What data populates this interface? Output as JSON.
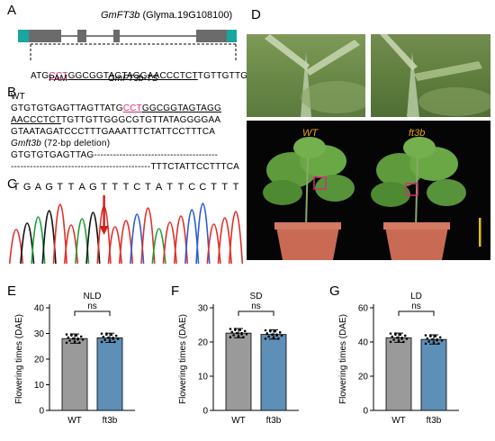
{
  "panels": {
    "A": "A",
    "B": "B",
    "C": "C",
    "D": "D",
    "E": "E",
    "F": "F",
    "G": "G"
  },
  "gene": {
    "name": "GmFT3b",
    "id": "(Glyma.19G108100)"
  },
  "grna": {
    "prefix": "ATG",
    "pam_seq": "CCT",
    "target_seq": "GGCGGTAGTAGGAACCCTCT",
    "suffix": "TGTTGTTG",
    "pam_label": "PAM",
    "ts_label": "GmFT3b-TS"
  },
  "seqs": {
    "wt_label": "WT",
    "line1_a": "GTGTGTGAGTTAGTTATG",
    "line1_pam": "CCT",
    "line1_b": "GGCGGTAGTAGG",
    "line2_a": "AACCCTCT",
    "line2_b": "TGTTGTTGGGCGTGTTATAGGGGAA",
    "line3": "GTAATAGATCCCTTTGAAATTTCTATTCCTTTCA",
    "mut_label": "Gmft3b",
    "mut_note": " (72-bp deletion)",
    "mut_line1": "GTGTGTGAGTTAG---------------------------------------",
    "mut_line2": "--------------------------------------------TTTCTATTCCTTTCA"
  },
  "chromatogram": {
    "bases": [
      "T",
      "G",
      "A",
      "G",
      "T",
      "T",
      "A",
      "G",
      "T",
      "T",
      "T",
      "C",
      "T",
      "A",
      "T",
      "T",
      "C",
      "C",
      "T",
      "T",
      "T"
    ]
  },
  "photo_labels": {
    "wt": "WT",
    "mut": "ft3b"
  },
  "colors": {
    "exon": "#6b6b6b",
    "utr": "#1aa6a0",
    "pink": "#d42c7a",
    "arrow": "#d0201c",
    "bar_wt": "#9a9a9a",
    "bar_ft3b": "#5e8fb6",
    "photo_label": "#e8a21a",
    "scale_bar": "#e8c000"
  },
  "chart_data": [
    {
      "type": "bar",
      "title": "NLD",
      "categories": [
        "WT",
        "ft3b"
      ],
      "values": [
        28,
        28.3
      ],
      "ylabel": "Flowering times (DAE)",
      "ylim": [
        0,
        40
      ],
      "yticks": [
        0,
        10,
        20,
        30,
        40
      ],
      "significance": "ns"
    },
    {
      "type": "bar",
      "title": "SD",
      "categories": [
        "WT",
        "ft3b"
      ],
      "values": [
        22.6,
        22.2
      ],
      "ylabel": "Flowering times (DAE)",
      "ylim": [
        0,
        30
      ],
      "yticks": [
        0,
        10,
        20,
        30
      ],
      "significance": "ns"
    },
    {
      "type": "bar",
      "title": "LD",
      "categories": [
        "WT",
        "ft3b"
      ],
      "values": [
        42.5,
        41.5
      ],
      "ylabel": "Flowering times (DAE)",
      "ylim": [
        0,
        60
      ],
      "yticks": [
        0,
        20,
        40,
        60
      ],
      "significance": "ns"
    }
  ]
}
